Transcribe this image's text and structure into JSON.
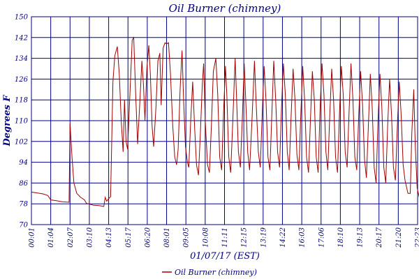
{
  "chart_data": {
    "type": "line",
    "title": "Oil Burner (chimney)",
    "ylabel": "Degrees F",
    "xlabel": "01/07/17 (EST)",
    "ylim": [
      70,
      150
    ],
    "yticks": [
      70,
      78,
      86,
      94,
      102,
      110,
      118,
      126,
      134,
      142,
      150
    ],
    "xticks": [
      "00:01",
      "01:04",
      "02:07",
      "03:10",
      "04:13",
      "05:17",
      "06:20",
      "08:01",
      "09:05",
      "10:08",
      "11:11",
      "12:15",
      "13:19",
      "14:22",
      "16:03",
      "17:06",
      "18:10",
      "19:13",
      "20:17",
      "21:20",
      "22:23"
    ],
    "grid": true,
    "legend_position": "bottom",
    "series": [
      {
        "name": "Oil Burner (chimney)",
        "color": "#a00000",
        "points": [
          [
            0.0,
            82.5
          ],
          [
            0.3,
            82.2
          ],
          [
            0.6,
            81.8
          ],
          [
            0.85,
            81.2
          ],
          [
            1.0,
            79.5
          ],
          [
            1.3,
            79.2
          ],
          [
            1.6,
            78.8
          ],
          [
            1.95,
            78.6
          ],
          [
            2.0,
            109
          ],
          [
            2.1,
            96
          ],
          [
            2.2,
            86
          ],
          [
            2.35,
            82
          ],
          [
            2.55,
            80.5
          ],
          [
            2.75,
            79.5
          ],
          [
            2.85,
            78.2
          ],
          [
            3.2,
            77.5
          ],
          [
            3.5,
            77.3
          ],
          [
            3.75,
            77.0
          ],
          [
            3.82,
            80.5
          ],
          [
            3.9,
            79.0
          ],
          [
            4.0,
            80.0
          ],
          [
            4.1,
            80.8
          ],
          [
            4.22,
            125
          ],
          [
            4.32,
            135
          ],
          [
            4.45,
            138.5
          ],
          [
            4.55,
            128
          ],
          [
            4.65,
            110
          ],
          [
            4.75,
            98
          ],
          [
            4.82,
            118
          ],
          [
            4.9,
            102
          ],
          [
            4.98,
            99
          ],
          [
            5.1,
            120
          ],
          [
            5.22,
            141
          ],
          [
            5.3,
            142
          ],
          [
            5.4,
            120
          ],
          [
            5.5,
            101
          ],
          [
            5.62,
            118
          ],
          [
            5.72,
            133
          ],
          [
            5.8,
            124
          ],
          [
            5.88,
            110
          ],
          [
            5.98,
            130
          ],
          [
            6.08,
            139
          ],
          [
            6.16,
            128
          ],
          [
            6.25,
            108
          ],
          [
            6.33,
            100
          ],
          [
            6.45,
            115
          ],
          [
            6.55,
            133
          ],
          [
            6.65,
            136
          ],
          [
            6.72,
            116
          ],
          [
            6.82,
            138
          ],
          [
            6.92,
            140
          ],
          [
            7.0,
            139.5
          ],
          [
            7.1,
            140
          ],
          [
            7.2,
            128
          ],
          [
            7.32,
            108
          ],
          [
            7.42,
            96
          ],
          [
            7.52,
            93
          ],
          [
            7.6,
            99
          ],
          [
            7.7,
            122
          ],
          [
            7.8,
            137
          ],
          [
            7.88,
            118
          ],
          [
            7.98,
            100
          ],
          [
            8.08,
            94
          ],
          [
            8.15,
            92
          ],
          [
            8.25,
            110
          ],
          [
            8.35,
            125
          ],
          [
            8.45,
            108
          ],
          [
            8.55,
            93
          ],
          [
            8.65,
            89
          ],
          [
            8.75,
            105
          ],
          [
            8.85,
            124
          ],
          [
            8.92,
            132
          ],
          [
            9.0,
            110
          ],
          [
            9.12,
            93
          ],
          [
            9.22,
            90
          ],
          [
            9.32,
            108
          ],
          [
            9.42,
            129
          ],
          [
            9.55,
            134
          ],
          [
            9.65,
            120
          ],
          [
            9.75,
            96
          ],
          [
            9.85,
            91
          ],
          [
            9.95,
            113
          ],
          [
            10.05,
            131
          ],
          [
            10.12,
            120
          ],
          [
            10.22,
            96
          ],
          [
            10.32,
            90
          ],
          [
            10.42,
            108
          ],
          [
            10.55,
            134
          ],
          [
            10.62,
            120
          ],
          [
            10.72,
            98
          ],
          [
            10.82,
            92
          ],
          [
            10.92,
            110
          ],
          [
            11.02,
            132
          ],
          [
            11.1,
            118
          ],
          [
            11.2,
            98
          ],
          [
            11.3,
            91
          ],
          [
            11.42,
            110
          ],
          [
            11.55,
            133
          ],
          [
            11.62,
            120
          ],
          [
            11.75,
            98
          ],
          [
            11.85,
            92
          ],
          [
            11.95,
            112
          ],
          [
            12.05,
            131
          ],
          [
            12.15,
            118
          ],
          [
            12.25,
            96
          ],
          [
            12.35,
            91
          ],
          [
            12.45,
            112
          ],
          [
            12.55,
            133
          ],
          [
            12.65,
            118
          ],
          [
            12.75,
            98
          ],
          [
            12.85,
            92
          ],
          [
            12.95,
            115
          ],
          [
            13.05,
            132
          ],
          [
            13.15,
            120
          ],
          [
            13.25,
            98
          ],
          [
            13.35,
            91
          ],
          [
            13.45,
            112
          ],
          [
            13.55,
            130
          ],
          [
            13.65,
            118
          ],
          [
            13.75,
            97
          ],
          [
            13.85,
            91
          ],
          [
            13.95,
            112
          ],
          [
            14.05,
            131
          ],
          [
            14.15,
            118
          ],
          [
            14.25,
            96
          ],
          [
            14.35,
            90
          ],
          [
            14.45,
            110
          ],
          [
            14.55,
            129
          ],
          [
            14.65,
            118
          ],
          [
            14.75,
            96
          ],
          [
            14.85,
            90
          ],
          [
            14.95,
            115
          ],
          [
            15.05,
            132
          ],
          [
            15.15,
            120
          ],
          [
            15.25,
            98
          ],
          [
            15.35,
            91
          ],
          [
            15.45,
            112
          ],
          [
            15.55,
            130
          ],
          [
            15.65,
            118
          ],
          [
            15.75,
            96
          ],
          [
            15.85,
            90
          ],
          [
            15.95,
            112
          ],
          [
            16.05,
            131
          ],
          [
            16.15,
            120
          ],
          [
            16.25,
            98
          ],
          [
            16.35,
            92
          ],
          [
            16.45,
            113
          ],
          [
            16.55,
            132
          ],
          [
            16.65,
            118
          ],
          [
            16.75,
            96
          ],
          [
            16.85,
            91
          ],
          [
            16.95,
            112
          ],
          [
            17.05,
            129
          ],
          [
            17.15,
            116
          ],
          [
            17.25,
            95
          ],
          [
            17.35,
            88
          ],
          [
            17.45,
            108
          ],
          [
            17.55,
            128
          ],
          [
            17.65,
            115
          ],
          [
            17.75,
            92
          ],
          [
            17.85,
            86
          ],
          [
            17.95,
            110
          ],
          [
            18.05,
            128
          ],
          [
            18.15,
            115
          ],
          [
            18.25,
            92
          ],
          [
            18.35,
            86
          ],
          [
            18.45,
            108
          ],
          [
            18.55,
            126
          ],
          [
            18.65,
            112
          ],
          [
            18.75,
            92
          ],
          [
            18.85,
            87
          ],
          [
            18.95,
            108
          ],
          [
            19.05,
            125
          ],
          [
            19.15,
            112
          ],
          [
            19.25,
            93
          ],
          [
            19.35,
            87
          ],
          [
            19.5,
            82
          ],
          [
            19.62,
            82
          ],
          [
            19.7,
            105
          ],
          [
            19.8,
            122
          ],
          [
            19.88,
            100
          ],
          [
            19.98,
            84
          ],
          [
            20.1,
            80
          ],
          [
            20.3,
            80
          ],
          [
            20.5,
            80
          ],
          [
            20.6,
            105
          ],
          [
            20.7,
            128
          ],
          [
            20.8,
            108
          ],
          [
            20.9,
            92
          ],
          [
            21.0,
            100
          ],
          [
            21.1,
            130
          ],
          [
            21.2,
            118
          ],
          [
            21.3,
            100
          ],
          [
            21.4,
            92
          ],
          [
            21.55,
            88
          ],
          [
            21.7,
            85
          ],
          [
            21.9,
            83.5
          ],
          [
            22.05,
            82.5
          ],
          [
            22.2,
            82.0
          ],
          [
            22.38,
            81.5
          ]
        ]
      }
    ]
  }
}
